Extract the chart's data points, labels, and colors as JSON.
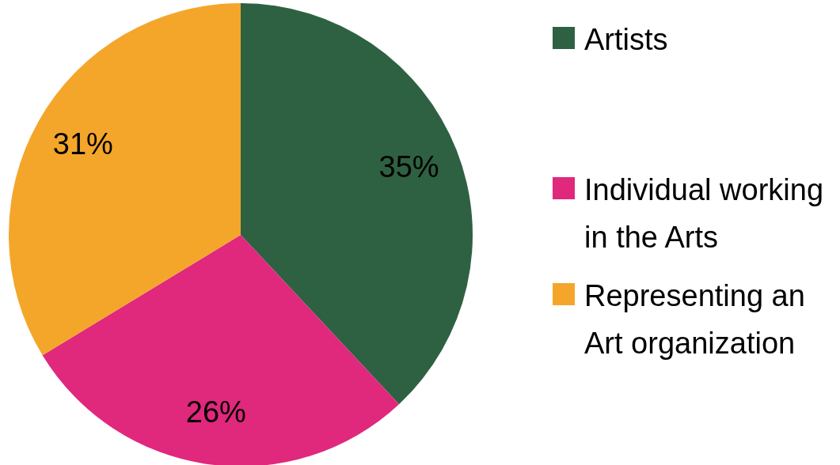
{
  "chart_data": {
    "type": "pie",
    "categories": [
      "Artists",
      "Individual working in the Arts",
      "Representing an Art organization"
    ],
    "values": [
      35,
      26,
      31
    ],
    "colors": [
      "#2e6142",
      "#e0287c",
      "#f4a62a"
    ],
    "value_labels": [
      "35%",
      "26%",
      "31%"
    ],
    "legend": "right"
  }
}
